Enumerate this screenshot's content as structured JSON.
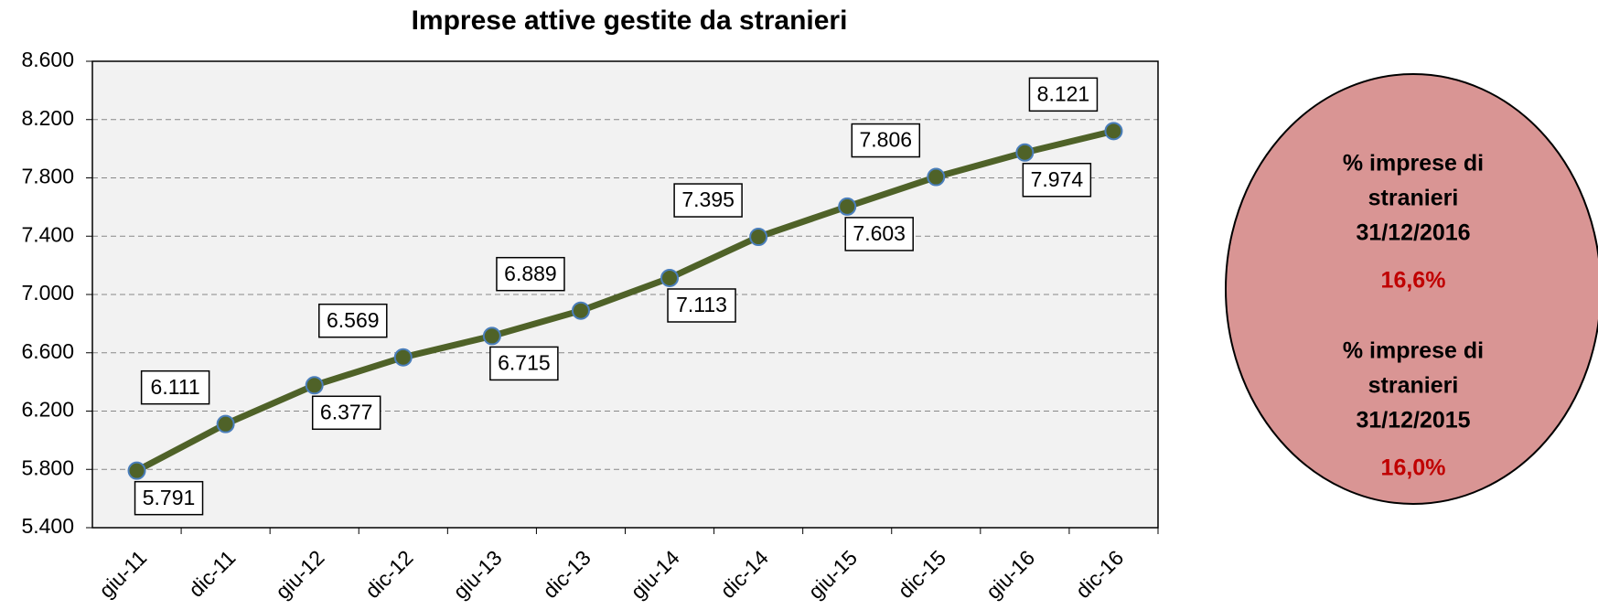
{
  "chart_data": {
    "type": "line",
    "title": "Imprese  attive gestite da stranieri",
    "categories": [
      "giu-11",
      "dic-11",
      "giu-12",
      "dic-12",
      "giu-13",
      "dic-13",
      "giu-14",
      "dic-14",
      "giu-15",
      "dic-15",
      "giu-16",
      "dic-16"
    ],
    "series": [
      {
        "name": "Imprese attive gestite da stranieri",
        "color": "#4f6228",
        "marker_edge": "#4a7ebb",
        "values": [
          5791,
          6111,
          6377,
          6569,
          6715,
          6889,
          7113,
          7395,
          7603,
          7806,
          7974,
          8121
        ],
        "value_labels": [
          "5.791",
          "6.111",
          "6.377",
          "6.569",
          "6.715",
          "6.889",
          "7.113",
          "7.395",
          "7.603",
          "7.806",
          "7.974",
          "8.121"
        ]
      }
    ],
    "ylim": [
      5400,
      8600
    ],
    "yticks": [
      {
        "value": 5400,
        "label": "5.400"
      },
      {
        "value": 5800,
        "label": "5.800"
      },
      {
        "value": 6200,
        "label": "6.200"
      },
      {
        "value": 6600,
        "label": "6.600"
      },
      {
        "value": 7000,
        "label": "7.000"
      },
      {
        "value": 7400,
        "label": "7.400"
      },
      {
        "value": 7800,
        "label": "7.800"
      },
      {
        "value": 8200,
        "label": "8.200"
      },
      {
        "value": 8600,
        "label": "8.600"
      }
    ],
    "grid": true,
    "annotations": [
      {
        "lines": [
          "% imprese di",
          "stranieri",
          "31/12/2016"
        ],
        "value_text": "16,6%"
      },
      {
        "lines": [
          "% imprese di",
          "stranieri",
          "31/12/2015"
        ],
        "value_text": "16,0%"
      }
    ]
  }
}
